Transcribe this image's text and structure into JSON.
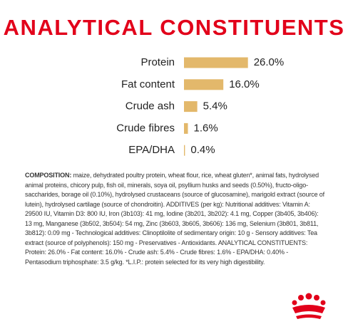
{
  "chart_data": {
    "type": "bar",
    "orientation": "horizontal",
    "title": "ANALYTICAL CONSTITUENTS",
    "categories": [
      "Protein",
      "Fat content",
      "Crude ash",
      "Crude fibres",
      "EPA/DHA"
    ],
    "values": [
      26.0,
      16.0,
      5.4,
      1.6,
      0.4
    ],
    "value_labels": [
      "26.0%",
      "16.0%",
      "5.4%",
      "1.6%",
      "0.4%"
    ],
    "color": "#e3b86b"
  },
  "composition": {
    "label": "COMPOSITION:",
    "text": "maize, dehydrated poultry protein, wheat flour, rice, wheat gluten*, animal fats, hydrolysed animal proteins, chicory pulp, fish oil, minerals, soya oil, psyllium husks and seeds (0.50%), fructo-oligo-saccharides, borage oil (0.10%), hydrolysed crustaceans (source of glucosamine), marigold extract (source of lutein), hydrolysed cartilage (source of chondroitin). ADDITIVES (per kg): Nutritional additives: Vitamin A: 29500 IU, Vitamin D3: 800 IU, Iron (3b103): 41 mg, Iodine (3b201, 3b202): 4.1 mg, Copper (3b405, 3b406): 13 mg, Manganese (3b502, 3b504): 54 mg, Zinc (3b603, 3b605, 3b606): 136 mg, Selenium (3b801, 3b811, 3b812): 0.09 mg - Technological additives: Clinoptilolite of sedimentary origin: 10 g - Sensory additives: Tea extract (source of polyphenols): 150 mg - Preservatives - Antioxidants. ANALYTICAL CONSTITUENTS: Protein: 26.0% - Fat content: 16.0% - Crude ash: 5.4% - Crude fibres: 1.6% - EPA/DHA: 0.40% - Pentasodium triphosphate: 3.5 g/kg. *L.I.P.: protein selected for its very high digestibility."
  }
}
